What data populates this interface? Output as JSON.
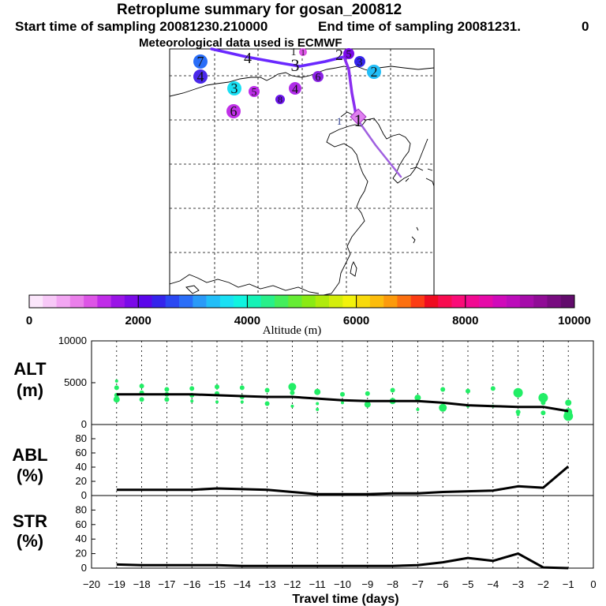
{
  "header": {
    "title": "Retroplume summary for gosan_200812",
    "start_label": "Start time of sampling 20081230.210000",
    "end_label": "End time of sampling 20081231.",
    "end_tail": "0",
    "met_label": "Meteorological data used is ECMWF"
  },
  "colors": {
    "background": "#ffffff",
    "path": "#7a30e8",
    "path_dark": "#6a28ff",
    "path_light": "#a060e0",
    "scatter": "#22ee66",
    "line": "#000000",
    "grid": "#000000"
  },
  "colorbar": {
    "label": "Altitude (m)",
    "min": 0,
    "max": 10000,
    "ticks": [
      "0",
      "2000",
      "4000",
      "6000",
      "8000",
      "10000"
    ],
    "colors": [
      "#fbe6fb",
      "#f7c8f7",
      "#f2a6f2",
      "#ea7fea",
      "#dd55e6",
      "#c02ce8",
      "#9a14e6",
      "#7a0ae8",
      "#5a06ea",
      "#3424ec",
      "#2a48f2",
      "#2a6ef8",
      "#2a9af8",
      "#22bef8",
      "#1ae0f4",
      "#10f4e0",
      "#14f2b6",
      "#28f08a",
      "#44ee5c",
      "#66ec34",
      "#8aea14",
      "#b0ea0c",
      "#d4ee0c",
      "#f2f20c",
      "#f8da0c",
      "#fcbc0c",
      "#fc9a0c",
      "#fc7010",
      "#fc3c14",
      "#ee0c20",
      "#f80c50",
      "#fa0c78",
      "#f20a92",
      "#e60aa8",
      "#d00aba",
      "#bc0cba",
      "#a60caa",
      "#900c96",
      "#780c80",
      "#620c6c"
    ]
  },
  "map": {
    "trajectory_label_main": "1",
    "trajectory_label_side": "1",
    "path_numbers": [
      {
        "text": "4"
      },
      {
        "text": "3"
      },
      {
        "text": "2"
      },
      {
        "text": "1"
      }
    ],
    "markers": [
      {
        "label": "7",
        "color": "#2a6ef8",
        "altitude": 3200
      },
      {
        "label": "4",
        "color": "#4a28ea",
        "altitude": 2400
      },
      {
        "label": "3",
        "color": "#1ae0f4",
        "altitude": 3800
      },
      {
        "label": "5",
        "color": "#bc2ce8",
        "altitude": 1300
      },
      {
        "label": "8",
        "color": "#6a14ea",
        "altitude": 2100
      },
      {
        "label": "4",
        "color": "#b02ce8",
        "altitude": 1400
      },
      {
        "label": "6",
        "color": "#c030e8",
        "altitude": 1300
      },
      {
        "label": "6",
        "color": "#8a22e4",
        "altitude": 1800
      },
      {
        "label": "2",
        "color": "#22bef8",
        "altitude": 3500
      },
      {
        "label": "3",
        "color": "#3424ec",
        "altitude": 2600
      },
      {
        "label": "5",
        "color": "#7a0ae8",
        "altitude": 2000
      },
      {
        "label": "1",
        "color": "#dd55e6",
        "altitude": 1000
      }
    ]
  },
  "chart_data": [
    {
      "type": "scatter+line",
      "ylabel": "ALT",
      "yunit": "(m)",
      "ylim": [
        0,
        10000
      ],
      "yticks": [
        "0",
        "5000",
        "10000"
      ],
      "xlim": [
        -20,
        0
      ],
      "line": {
        "x": [
          -19,
          -18,
          -17,
          -16,
          -15,
          -14,
          -13,
          -12,
          -11,
          -10,
          -9,
          -8,
          -7,
          -6,
          -5,
          -4,
          -3,
          -2,
          -1
        ],
        "y": [
          3600,
          3600,
          3600,
          3600,
          3500,
          3400,
          3300,
          3300,
          3100,
          2900,
          2800,
          2800,
          2800,
          2600,
          2300,
          2200,
          2100,
          2100,
          1600
        ]
      },
      "scatter": {
        "x": [
          -19,
          -19,
          -19,
          -19,
          -18,
          -18,
          -18,
          -17,
          -17,
          -17,
          -16,
          -16,
          -16,
          -15,
          -15,
          -15,
          -14,
          -14,
          -14,
          -13,
          -13,
          -12,
          -12,
          -12,
          -11,
          -11,
          -11,
          -10,
          -10,
          -9,
          -9,
          -8,
          -8,
          -7,
          -7,
          -6,
          -6,
          -5,
          -5,
          -4,
          -4,
          -3,
          -3,
          -3,
          -2,
          -2,
          -2,
          -1,
          -1,
          -1
        ],
        "y": [
          5200,
          4400,
          3500,
          3000,
          4600,
          3800,
          3000,
          4200,
          3600,
          3000,
          4300,
          3500,
          2800,
          4500,
          3700,
          2700,
          4400,
          3300,
          2700,
          4100,
          2500,
          4500,
          3800,
          2200,
          3900,
          2500,
          1800,
          3600,
          2600,
          3700,
          2400,
          4100,
          2800,
          3200,
          1800,
          4200,
          2000,
          4000,
          2200,
          4300,
          2200,
          3800,
          1500,
          1200,
          3200,
          2600,
          1400,
          2600,
          1500,
          1000
        ],
        "r": [
          2,
          3,
          3,
          4,
          3,
          3,
          3,
          3,
          3,
          3,
          3,
          3,
          2,
          3,
          3,
          2,
          3,
          3,
          2,
          3,
          3,
          5,
          3,
          2,
          4,
          2,
          2,
          3,
          2,
          3,
          4,
          3,
          4,
          4,
          2,
          3,
          5,
          3,
          2,
          3,
          2,
          6,
          3,
          2,
          6,
          3,
          3,
          4,
          5,
          6
        ]
      },
      "xtick_labels": []
    },
    {
      "type": "line",
      "ylabel": "ABL",
      "yunit": "(%)",
      "ylim": [
        0,
        100
      ],
      "yticks": [
        "0",
        "20",
        "40",
        "60",
        "80"
      ],
      "xlim": [
        -20,
        0
      ],
      "x": [
        -19,
        -18,
        -17,
        -16,
        -15,
        -14,
        -13,
        -12,
        -11,
        -10,
        -9,
        -8,
        -7,
        -6,
        -5,
        -4,
        -3,
        -2,
        -1
      ],
      "y": [
        8,
        8,
        8,
        8,
        10,
        9,
        8,
        5,
        2,
        2,
        2,
        3,
        3,
        5,
        6,
        7,
        13,
        11,
        41
      ]
    },
    {
      "type": "line",
      "ylabel": "STR",
      "yunit": "(%)",
      "ylim": [
        0,
        100
      ],
      "yticks": [
        "0",
        "20",
        "40",
        "60",
        "80"
      ],
      "xlim": [
        -20,
        0
      ],
      "x": [
        -19,
        -18,
        -17,
        -16,
        -15,
        -14,
        -13,
        -12,
        -11,
        -10,
        -9,
        -8,
        -7,
        -6,
        -5,
        -4,
        -3,
        -2,
        -1
      ],
      "y": [
        5,
        4,
        4,
        4,
        4,
        3,
        3,
        3,
        3,
        3,
        3,
        3,
        4,
        8,
        14,
        10,
        20,
        1,
        0
      ],
      "xlabel": "Travel time (days)",
      "xtick_labels": [
        "−20",
        "−19",
        "−18",
        "−17",
        "−16",
        "−15",
        "−14",
        "−13",
        "−12",
        "−11",
        "−10",
        "−9",
        "−8",
        "−7",
        "−6",
        "−5",
        "−4",
        "−3",
        "−2",
        "−1",
        "0"
      ]
    }
  ]
}
